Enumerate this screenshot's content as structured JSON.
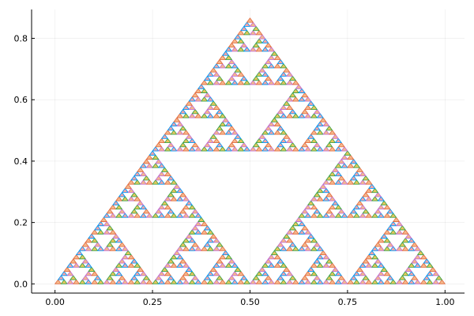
{
  "chart_data": {
    "type": "line",
    "description_kind": "sierpinski-triangle-fill",
    "fractal": {
      "outer_triangle": {
        "x": [
          0.0,
          1.0,
          0.5
        ],
        "y": [
          0.0,
          0.0,
          0.866
        ]
      },
      "depth": 6
    },
    "series": [
      {
        "color": "#e26f46",
        "fill": "#f5b88a"
      },
      {
        "color": "#3da44d",
        "fill": "#e8c65a"
      },
      {
        "color": "#009af9",
        "fill": "#f8a3a3"
      },
      {
        "color": "#c271d2",
        "fill": "#f5b88a"
      }
    ],
    "xticks": [
      0.0,
      0.25,
      0.5,
      0.75,
      1.0
    ],
    "xtick_labels": [
      "0.00",
      "0.25",
      "0.50",
      "0.75",
      "1.00"
    ],
    "yticks": [
      0.0,
      0.2,
      0.4,
      0.6,
      0.8
    ],
    "ytick_labels": [
      "0.0",
      "0.2",
      "0.4",
      "0.6",
      "0.8"
    ],
    "xlim": [
      -0.06,
      1.05
    ],
    "ylim": [
      -0.03,
      0.894
    ],
    "grid": true,
    "legend": "none",
    "title": "",
    "xlabel": "",
    "ylabel": ""
  }
}
